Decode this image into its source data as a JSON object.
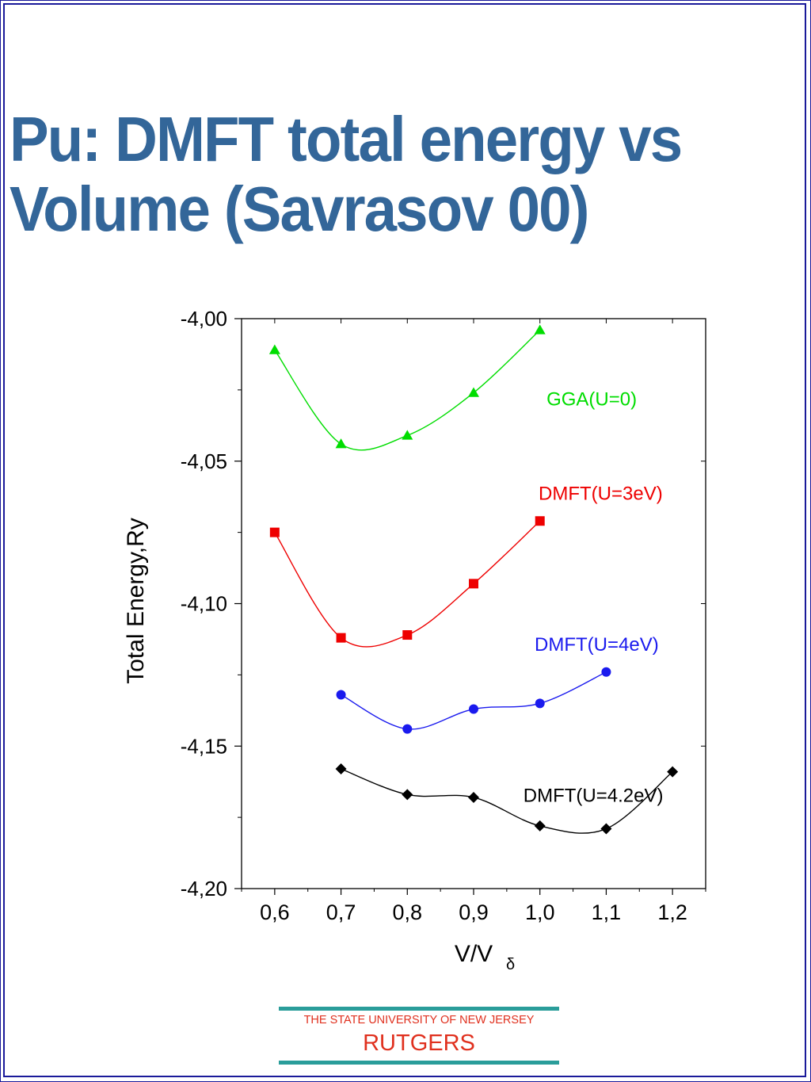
{
  "slide": {
    "title_line1": "Pu: DMFT total energy vs",
    "title_line2": "Volume (Savrasov 00)",
    "title_color": "#336699",
    "border_color": "#1a1a9a"
  },
  "chart_data": {
    "type": "scatter",
    "title": "",
    "xlabel": "V/V",
    "xlabel_subscript": "δ",
    "ylabel": "Total Energy,Ry",
    "xlim": [
      0.55,
      1.25
    ],
    "ylim": [
      -4.2,
      -4.0
    ],
    "x_ticks": [
      "0,6",
      "0,7",
      "0,8",
      "0,9",
      "1,0",
      "1,1",
      "1,2"
    ],
    "y_ticks": [
      "-4,00",
      "-4,05",
      "-4,10",
      "-4,15",
      "-4,20"
    ],
    "grid": false,
    "series": [
      {
        "name": "GGA(U=0)",
        "color": "#00dd00",
        "marker": "triangle",
        "x": [
          0.6,
          0.7,
          0.8,
          0.9,
          1.0
        ],
        "y": [
          -4.011,
          -4.044,
          -4.041,
          -4.026,
          -4.004
        ]
      },
      {
        "name": "DMFT(U=3eV)",
        "color": "#ee0000",
        "marker": "square",
        "x": [
          0.6,
          0.7,
          0.8,
          0.9,
          1.0
        ],
        "y": [
          -4.075,
          -4.112,
          -4.111,
          -4.093,
          -4.071
        ]
      },
      {
        "name": "DMFT(U=4eV)",
        "color": "#1a1aee",
        "marker": "circle",
        "x": [
          0.7,
          0.8,
          0.9,
          1.0,
          1.1
        ],
        "y": [
          -4.132,
          -4.144,
          -4.137,
          -4.135,
          -4.124
        ]
      },
      {
        "name": "DMFT(U=4.2eV)",
        "color": "#000000",
        "marker": "diamond",
        "x": [
          0.7,
          0.8,
          0.9,
          1.0,
          1.1,
          1.2
        ],
        "y": [
          -4.158,
          -4.167,
          -4.168,
          -4.178,
          -4.179,
          -4.159
        ]
      }
    ]
  },
  "footer": {
    "university": "THE STATE UNIVERSITY OF NEW JERSEY",
    "name": "RUTGERS",
    "text_color": "#e0301e",
    "rule_color": "#2a9d9a"
  }
}
